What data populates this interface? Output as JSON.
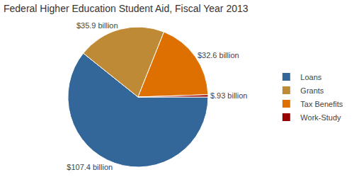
{
  "chart_data": {
    "type": "pie",
    "title": "Federal Higher Education Student Aid, Fiscal Year 2013",
    "categories": [
      "Loans",
      "Grants",
      "Tax Benefits",
      "Work-Study"
    ],
    "values": [
      107.4,
      35.9,
      32.6,
      0.93
    ],
    "value_labels": [
      "$107.4 billion",
      "$35.9 billion",
      "$32.6 billion",
      "$.93 billion"
    ],
    "colors": [
      "#336699",
      "#bf8a35",
      "#dd7000",
      "#990000"
    ],
    "data_labels": true,
    "legend": "right"
  }
}
